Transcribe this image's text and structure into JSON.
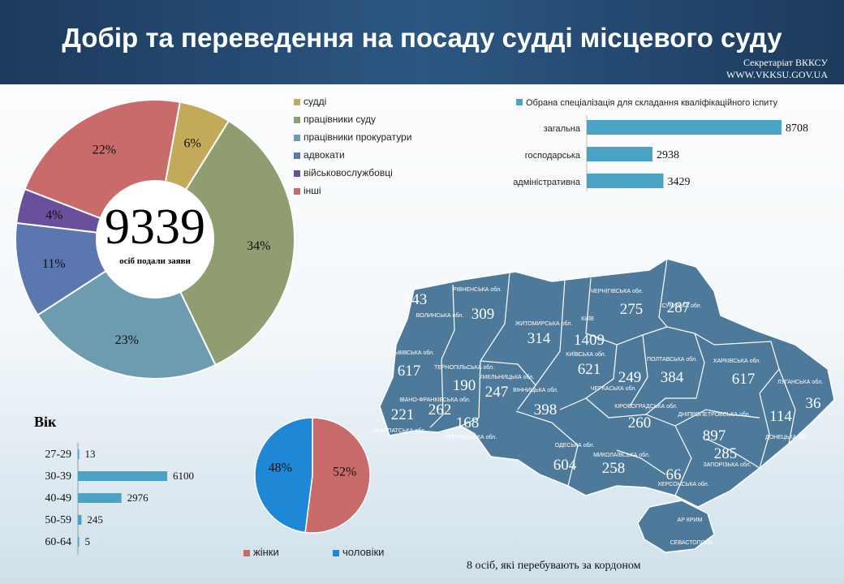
{
  "header": {
    "title": "Добір та переведення на посаду судді місцевого суду",
    "org": "Секретаріат ВККСУ",
    "site": "WWW.VKKSU.GOV.UA"
  },
  "chart_data": [
    {
      "type": "pie",
      "variant": "donut",
      "categories": [
        "судді",
        "працівники суду",
        "працівники прокуратури",
        "адвокати",
        "військовослужбовці",
        "інші"
      ],
      "values": [
        6,
        34,
        23,
        11,
        4,
        22
      ],
      "labels": [
        "6%",
        "34%",
        "23%",
        "11%",
        "4%",
        "22%"
      ],
      "colors": [
        "#c3aa5a",
        "#8f9d70",
        "#6d9cb0",
        "#5a77b0",
        "#6a4f9b",
        "#c96b6b"
      ],
      "center_value": "9339",
      "center_caption": "осіб подали заяви",
      "legend": "right"
    },
    {
      "type": "bar",
      "orientation": "horizontal",
      "title": "Обрана спеціалізація  для  складання  кваліфікаційного  іспиту",
      "categories": [
        "загальна",
        "господарська",
        "адміністративна"
      ],
      "values": [
        8708,
        2938,
        3429
      ],
      "color": "#4aa3c4"
    },
    {
      "type": "bar",
      "orientation": "horizontal",
      "title": "Вік",
      "categories": [
        "27-29",
        "30-39",
        "40-49",
        "50-59",
        "60-64"
      ],
      "values": [
        13,
        6100,
        2976,
        245,
        5
      ],
      "color": "#4aa3c4"
    },
    {
      "type": "pie",
      "categories": [
        "жінки",
        "чоловіки"
      ],
      "values": [
        52,
        48
      ],
      "labels": [
        "52%",
        "48%"
      ],
      "colors": [
        "#c96b6b",
        "#1e88d6"
      ],
      "legend": "bottom"
    }
  ],
  "map": {
    "regions": [
      {
        "name": "ВОЛИНСЬКА обл.",
        "value": "243"
      },
      {
        "name": "РІВНЕНСЬКА обл.",
        "value": "309"
      },
      {
        "name": "ЖИТОМИРСЬКА обл.",
        "value": "314"
      },
      {
        "name": "КИЇВ",
        "value": "1409"
      },
      {
        "name": "ЧЕРНІГІВСЬКА обл.",
        "value": "275"
      },
      {
        "name": "СУМСЬКА обл.",
        "value": "287"
      },
      {
        "name": "ЛЬВІВСЬКА обл.",
        "value": "617"
      },
      {
        "name": "ТЕРНОПІЛЬСЬКА обл.",
        "value": "190"
      },
      {
        "name": "ХМЕЛЬНИЦЬКА обл.",
        "value": "247"
      },
      {
        "name": "ВІННИЦЬКА обл.",
        "value": "398"
      },
      {
        "name": "КИЇВСЬКА обл.",
        "value": "621"
      },
      {
        "name": "ЧЕРКАСЬКА обл.",
        "value": "249"
      },
      {
        "name": "ПОЛТАВСЬКА обл.",
        "value": "384"
      },
      {
        "name": "ХАРКІВСЬКА обл.",
        "value": "617"
      },
      {
        "name": "ЛУГАНСЬКА обл.",
        "value": "36"
      },
      {
        "name": "ІВАНО-ФРАНКІВСЬКА обл.",
        "value": "262"
      },
      {
        "name": "ЗАКАРПАТСЬКА обл.",
        "value": "221"
      },
      {
        "name": "ЧЕРНІВЕЦЬКА обл.",
        "value": "168"
      },
      {
        "name": "КІРОВОГРАДСЬКА обл.",
        "value": "260"
      },
      {
        "name": "ДНІПРОПЕТРОВСЬКА обл.",
        "value": "897"
      },
      {
        "name": "ДОНЕЦЬКА обл.",
        "value": "114"
      },
      {
        "name": "ЗАПОРІЗЬКА обл.",
        "value": "285"
      },
      {
        "name": "ОДЕСЬКА обл.",
        "value": "604"
      },
      {
        "name": "МИКОЛАЇВСЬКА обл.",
        "value": "258"
      },
      {
        "name": "ХЕРСОНСЬКА обл.",
        "value": "66"
      },
      {
        "name": "АР КРИМ",
        "value": ""
      },
      {
        "name": "СЕВАСТОПОЛЬ",
        "value": ""
      }
    ],
    "footnote": "8 осіб,  які  перебувають  за кордоном"
  }
}
